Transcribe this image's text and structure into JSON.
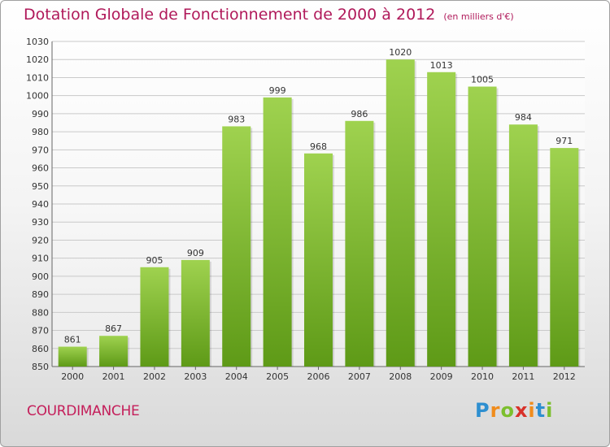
{
  "title": "Dotation Globale de Fonctionnement de 2000 à 2012",
  "unit_note": "(en milliers d'€)",
  "commune": "COURDIMANCHE",
  "logo": {
    "letters": [
      "P",
      "r",
      "o",
      "x",
      "i",
      "t",
      "i"
    ],
    "colors": [
      "#2e8fd0",
      "#f08c1c",
      "#7cbf2e",
      "#d8312a",
      "#f08c1c",
      "#2e8fd0",
      "#7cbf2e"
    ]
  },
  "colors": {
    "title": "#b0195a",
    "bar_top": "#9fd24f",
    "bar_bottom": "#5e9a17",
    "grid": "#c9c9c9"
  },
  "chart_data": {
    "type": "bar",
    "categories": [
      "2000",
      "2001",
      "2002",
      "2003",
      "2004",
      "2005",
      "2006",
      "2007",
      "2008",
      "2009",
      "2010",
      "2011",
      "2012"
    ],
    "values": [
      861,
      867,
      905,
      909,
      983,
      999,
      968,
      986,
      1020,
      1013,
      1005,
      984,
      971
    ],
    "title": "Dotation Globale de Fonctionnement de 2000 à 2012",
    "xlabel": "",
    "ylabel": "",
    "ylim": [
      850,
      1030
    ],
    "ytick_step": 10,
    "grid": true,
    "data_labels": true
  }
}
